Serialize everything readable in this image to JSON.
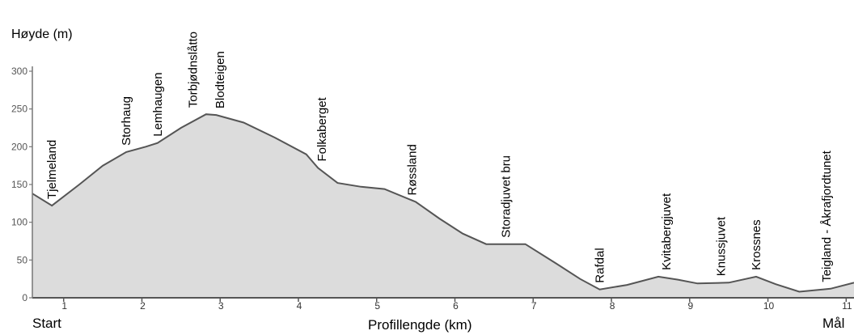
{
  "chart_data": {
    "type": "area",
    "ylabel": "Høyde (m)",
    "xlabel": "Profillengde (km)",
    "start_label": "Start",
    "end_label": "Mål",
    "xlim": [
      0.6,
      11.1
    ],
    "ylim": [
      0,
      300
    ],
    "x_ticks": [
      1,
      2,
      3,
      4,
      5,
      6,
      7,
      8,
      9,
      10,
      11
    ],
    "y_ticks": [
      0,
      50,
      100,
      150,
      200,
      250,
      300
    ],
    "fill_color": "#dcdcdc",
    "line_color": "#555555",
    "profile": [
      {
        "x": 0.6,
        "y": 138
      },
      {
        "x": 0.85,
        "y": 122
      },
      {
        "x": 1.2,
        "y": 150
      },
      {
        "x": 1.5,
        "y": 175
      },
      {
        "x": 1.8,
        "y": 193
      },
      {
        "x": 2.05,
        "y": 200
      },
      {
        "x": 2.2,
        "y": 205
      },
      {
        "x": 2.5,
        "y": 225
      },
      {
        "x": 2.82,
        "y": 243
      },
      {
        "x": 2.95,
        "y": 242
      },
      {
        "x": 3.3,
        "y": 232
      },
      {
        "x": 3.7,
        "y": 212
      },
      {
        "x": 4.1,
        "y": 190
      },
      {
        "x": 4.25,
        "y": 172
      },
      {
        "x": 4.5,
        "y": 152
      },
      {
        "x": 4.8,
        "y": 147
      },
      {
        "x": 5.1,
        "y": 144
      },
      {
        "x": 5.5,
        "y": 127
      },
      {
        "x": 5.8,
        "y": 105
      },
      {
        "x": 6.1,
        "y": 85
      },
      {
        "x": 6.4,
        "y": 71
      },
      {
        "x": 6.9,
        "y": 71
      },
      {
        "x": 7.3,
        "y": 45
      },
      {
        "x": 7.6,
        "y": 25
      },
      {
        "x": 7.85,
        "y": 11
      },
      {
        "x": 8.2,
        "y": 17
      },
      {
        "x": 8.6,
        "y": 28
      },
      {
        "x": 8.85,
        "y": 24
      },
      {
        "x": 9.1,
        "y": 19
      },
      {
        "x": 9.5,
        "y": 20
      },
      {
        "x": 9.85,
        "y": 28
      },
      {
        "x": 10.1,
        "y": 18
      },
      {
        "x": 10.4,
        "y": 8
      },
      {
        "x": 10.8,
        "y": 12
      },
      {
        "x": 11.1,
        "y": 20
      }
    ],
    "places": [
      {
        "name": "Tjelmeland",
        "x": 0.85,
        "y": 122
      },
      {
        "name": "Storhaug",
        "x": 1.8,
        "y": 193
      },
      {
        "name": "Lemhaugen",
        "x": 2.2,
        "y": 205
      },
      {
        "name": "Torbjødnslåtto",
        "x": 2.65,
        "y": 243
      },
      {
        "name": "Blodteigen",
        "x": 3.0,
        "y": 242
      },
      {
        "name": "Folkaberget",
        "x": 4.3,
        "y": 172
      },
      {
        "name": "Røssland",
        "x": 5.45,
        "y": 127
      },
      {
        "name": "Storadjuvet bru",
        "x": 6.65,
        "y": 71
      },
      {
        "name": "Rafdal",
        "x": 7.85,
        "y": 11
      },
      {
        "name": "Kvitabergjuvet",
        "x": 8.7,
        "y": 28
      },
      {
        "name": "Knussjuvet",
        "x": 9.4,
        "y": 20
      },
      {
        "name": "Krossnes",
        "x": 9.85,
        "y": 28
      },
      {
        "name": "Teigland - Åkrafjordtunet",
        "x": 10.75,
        "y": 12
      }
    ]
  }
}
